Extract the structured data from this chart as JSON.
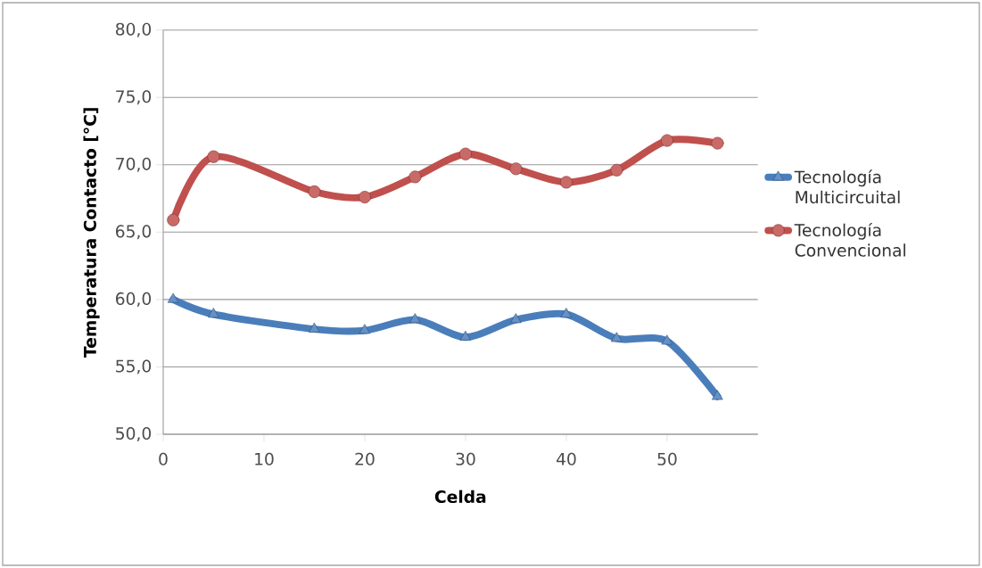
{
  "chart_data": {
    "type": "line",
    "xlabel": "Celda",
    "ylabel": "Temperatura Contacto [°C]",
    "x": [
      1,
      5,
      15,
      20,
      25,
      30,
      35,
      40,
      45,
      50,
      55
    ],
    "series": [
      {
        "name": "Tecnología Multicircuital",
        "color": "#4a7ebb",
        "marker": "triangle",
        "values": [
          60.0,
          58.9,
          57.8,
          57.7,
          58.5,
          57.2,
          58.5,
          58.9,
          57.1,
          56.9,
          52.8
        ]
      },
      {
        "name": "Tecnología Convencional",
        "color": "#c0504d",
        "marker": "circle",
        "values": [
          65.9,
          70.6,
          68.0,
          67.6,
          69.1,
          70.8,
          69.7,
          68.7,
          69.6,
          71.8,
          71.6
        ]
      }
    ],
    "xlim": [
      0,
      59
    ],
    "xticks": [
      0,
      10,
      20,
      30,
      40,
      50
    ],
    "ylim": [
      50,
      80
    ],
    "yticks": [
      {
        "value": 50,
        "label": "50,0"
      },
      {
        "value": 55,
        "label": "55,0"
      },
      {
        "value": 60,
        "label": "60,0"
      },
      {
        "value": 65,
        "label": "65,0"
      },
      {
        "value": 70,
        "label": "70,0"
      },
      {
        "value": 75,
        "label": "75,0"
      },
      {
        "value": 80,
        "label": "80,0"
      }
    ],
    "grid": "y",
    "legend": "right",
    "line_style": "solid"
  }
}
